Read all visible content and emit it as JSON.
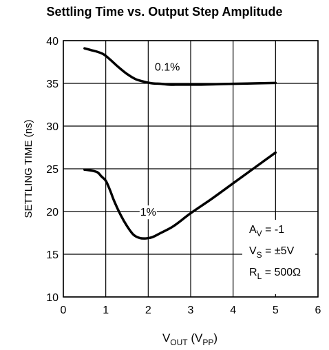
{
  "chart_data": {
    "type": "line",
    "title": "Settling Time vs. Output Step Amplitude",
    "xlabel": {
      "main": "V",
      "sub": "OUT",
      "paren": " (V",
      "paren_sub": "PP",
      "close": ")"
    },
    "ylabel": "SETTLING TIME (ns)",
    "xlim": [
      0,
      6
    ],
    "ylim": [
      10,
      40
    ],
    "x_ticks": [
      0,
      1,
      2,
      3,
      4,
      5,
      6
    ],
    "y_ticks": [
      10,
      15,
      20,
      25,
      30,
      35,
      40
    ],
    "grid": true,
    "series": [
      {
        "name": "0.1%",
        "x": [
          0.5,
          0.65,
          0.8,
          0.95,
          1.1,
          1.3,
          1.5,
          1.7,
          1.9,
          2.1,
          2.3,
          2.5,
          2.8,
          3.2,
          3.6,
          4.0,
          4.5,
          5.0
        ],
        "y": [
          39.1,
          38.9,
          38.7,
          38.4,
          37.8,
          36.9,
          36.1,
          35.5,
          35.2,
          35.0,
          34.95,
          34.85,
          34.85,
          34.85,
          34.9,
          34.95,
          35.0,
          35.05
        ]
      },
      {
        "name": "1%",
        "x": [
          0.5,
          0.65,
          0.8,
          0.9,
          1.0,
          1.1,
          1.2,
          1.35,
          1.5,
          1.65,
          1.8,
          1.95,
          2.1,
          2.3,
          2.6,
          3.0,
          3.5,
          4.0,
          4.5,
          5.0
        ],
        "y": [
          24.9,
          24.8,
          24.6,
          24.1,
          23.6,
          22.5,
          21.2,
          19.6,
          18.3,
          17.3,
          16.9,
          16.85,
          17.0,
          17.5,
          18.3,
          19.8,
          21.5,
          23.3,
          25.1,
          26.9
        ]
      }
    ],
    "annotations": [
      {
        "text": "0.1%",
        "x": 2.45,
        "y": 36.5
      },
      {
        "text": "1%",
        "x": 2.0,
        "y": 19.5
      }
    ],
    "legend_box": {
      "lines": [
        {
          "main": "A",
          "sub": "V",
          "rest": " = -1"
        },
        {
          "main": "V",
          "sub": "S",
          "rest": " = ±5V"
        },
        {
          "main": "R",
          "sub": "L",
          "rest": " = 500Ω"
        }
      ],
      "placement": "bottom-right"
    }
  }
}
